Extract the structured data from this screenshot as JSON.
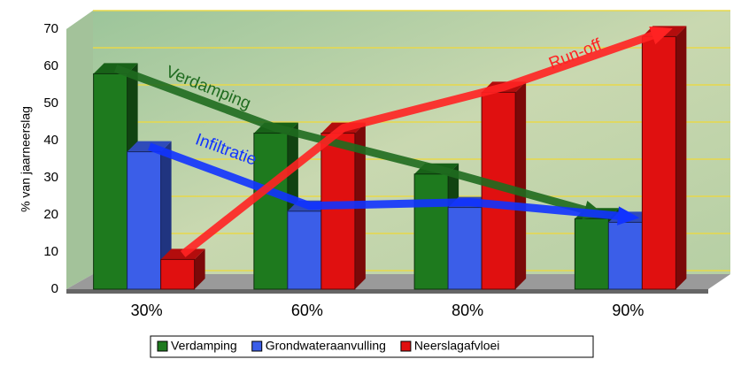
{
  "chart_data": {
    "type": "bar",
    "y_label": "% van jaarneerslag",
    "categories": [
      "30%",
      "60%",
      "80%",
      "90%"
    ],
    "series": [
      {
        "name": "Verdamping",
        "color": "#1e7a1e",
        "values": [
          58,
          42,
          31,
          19
        ]
      },
      {
        "name": "Grondwateraanvulling",
        "color": "#3b5ee8",
        "values": [
          37,
          21,
          22,
          18
        ]
      },
      {
        "name": "Neerslagafvloei",
        "color": "#e01010",
        "values": [
          8,
          42,
          53,
          68
        ]
      }
    ],
    "annotations": [
      "Verdamping",
      "Infiltratie",
      "Run-off"
    ],
    "ylim": [
      0,
      70
    ],
    "yticks": [
      0,
      10,
      20,
      30,
      40,
      50,
      60,
      70
    ],
    "grid": true,
    "legend": "bottom"
  }
}
